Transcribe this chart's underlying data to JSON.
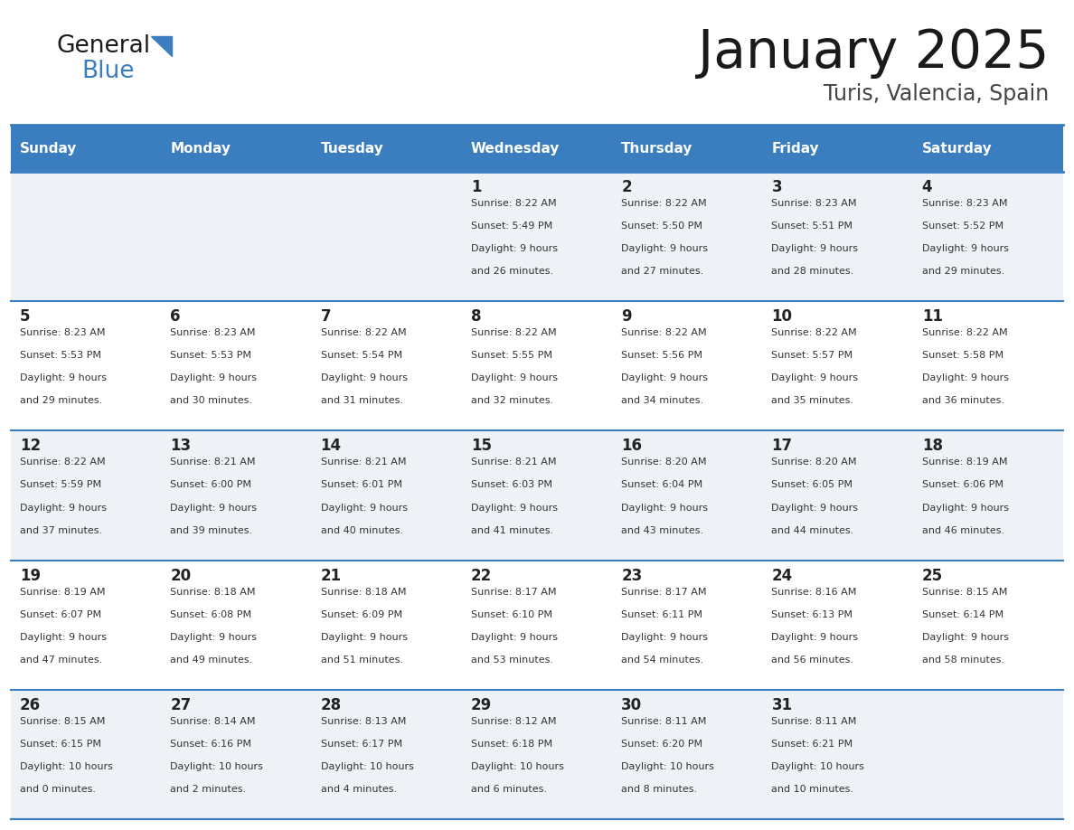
{
  "title": "January 2025",
  "subtitle": "Turis, Valencia, Spain",
  "header_color": "#3a7ebf",
  "header_text_color": "#ffffff",
  "cell_bg_even": "#eef2f7",
  "cell_bg_odd": "#ffffff",
  "border_color": "#3a7ebf",
  "text_color": "#333333",
  "day_num_color": "#222222",
  "days_of_week": [
    "Sunday",
    "Monday",
    "Tuesday",
    "Wednesday",
    "Thursday",
    "Friday",
    "Saturday"
  ],
  "weeks": [
    [
      {
        "day": "",
        "sunrise": "",
        "sunset": "",
        "daylight_h": "",
        "daylight_m": ""
      },
      {
        "day": "",
        "sunrise": "",
        "sunset": "",
        "daylight_h": "",
        "daylight_m": ""
      },
      {
        "day": "",
        "sunrise": "",
        "sunset": "",
        "daylight_h": "",
        "daylight_m": ""
      },
      {
        "day": "1",
        "sunrise": "8:22 AM",
        "sunset": "5:49 PM",
        "daylight_h": "9",
        "daylight_m": "26"
      },
      {
        "day": "2",
        "sunrise": "8:22 AM",
        "sunset": "5:50 PM",
        "daylight_h": "9",
        "daylight_m": "27"
      },
      {
        "day": "3",
        "sunrise": "8:23 AM",
        "sunset": "5:51 PM",
        "daylight_h": "9",
        "daylight_m": "28"
      },
      {
        "day": "4",
        "sunrise": "8:23 AM",
        "sunset": "5:52 PM",
        "daylight_h": "9",
        "daylight_m": "29"
      }
    ],
    [
      {
        "day": "5",
        "sunrise": "8:23 AM",
        "sunset": "5:53 PM",
        "daylight_h": "9",
        "daylight_m": "29"
      },
      {
        "day": "6",
        "sunrise": "8:23 AM",
        "sunset": "5:53 PM",
        "daylight_h": "9",
        "daylight_m": "30"
      },
      {
        "day": "7",
        "sunrise": "8:22 AM",
        "sunset": "5:54 PM",
        "daylight_h": "9",
        "daylight_m": "31"
      },
      {
        "day": "8",
        "sunrise": "8:22 AM",
        "sunset": "5:55 PM",
        "daylight_h": "9",
        "daylight_m": "32"
      },
      {
        "day": "9",
        "sunrise": "8:22 AM",
        "sunset": "5:56 PM",
        "daylight_h": "9",
        "daylight_m": "34"
      },
      {
        "day": "10",
        "sunrise": "8:22 AM",
        "sunset": "5:57 PM",
        "daylight_h": "9",
        "daylight_m": "35"
      },
      {
        "day": "11",
        "sunrise": "8:22 AM",
        "sunset": "5:58 PM",
        "daylight_h": "9",
        "daylight_m": "36"
      }
    ],
    [
      {
        "day": "12",
        "sunrise": "8:22 AM",
        "sunset": "5:59 PM",
        "daylight_h": "9",
        "daylight_m": "37"
      },
      {
        "day": "13",
        "sunrise": "8:21 AM",
        "sunset": "6:00 PM",
        "daylight_h": "9",
        "daylight_m": "39"
      },
      {
        "day": "14",
        "sunrise": "8:21 AM",
        "sunset": "6:01 PM",
        "daylight_h": "9",
        "daylight_m": "40"
      },
      {
        "day": "15",
        "sunrise": "8:21 AM",
        "sunset": "6:03 PM",
        "daylight_h": "9",
        "daylight_m": "41"
      },
      {
        "day": "16",
        "sunrise": "8:20 AM",
        "sunset": "6:04 PM",
        "daylight_h": "9",
        "daylight_m": "43"
      },
      {
        "day": "17",
        "sunrise": "8:20 AM",
        "sunset": "6:05 PM",
        "daylight_h": "9",
        "daylight_m": "44"
      },
      {
        "day": "18",
        "sunrise": "8:19 AM",
        "sunset": "6:06 PM",
        "daylight_h": "9",
        "daylight_m": "46"
      }
    ],
    [
      {
        "day": "19",
        "sunrise": "8:19 AM",
        "sunset": "6:07 PM",
        "daylight_h": "9",
        "daylight_m": "47"
      },
      {
        "day": "20",
        "sunrise": "8:18 AM",
        "sunset": "6:08 PM",
        "daylight_h": "9",
        "daylight_m": "49"
      },
      {
        "day": "21",
        "sunrise": "8:18 AM",
        "sunset": "6:09 PM",
        "daylight_h": "9",
        "daylight_m": "51"
      },
      {
        "day": "22",
        "sunrise": "8:17 AM",
        "sunset": "6:10 PM",
        "daylight_h": "9",
        "daylight_m": "53"
      },
      {
        "day": "23",
        "sunrise": "8:17 AM",
        "sunset": "6:11 PM",
        "daylight_h": "9",
        "daylight_m": "54"
      },
      {
        "day": "24",
        "sunrise": "8:16 AM",
        "sunset": "6:13 PM",
        "daylight_h": "9",
        "daylight_m": "56"
      },
      {
        "day": "25",
        "sunrise": "8:15 AM",
        "sunset": "6:14 PM",
        "daylight_h": "9",
        "daylight_m": "58"
      }
    ],
    [
      {
        "day": "26",
        "sunrise": "8:15 AM",
        "sunset": "6:15 PM",
        "daylight_h": "10",
        "daylight_m": "0"
      },
      {
        "day": "27",
        "sunrise": "8:14 AM",
        "sunset": "6:16 PM",
        "daylight_h": "10",
        "daylight_m": "2"
      },
      {
        "day": "28",
        "sunrise": "8:13 AM",
        "sunset": "6:17 PM",
        "daylight_h": "10",
        "daylight_m": "4"
      },
      {
        "day": "29",
        "sunrise": "8:12 AM",
        "sunset": "6:18 PM",
        "daylight_h": "10",
        "daylight_m": "6"
      },
      {
        "day": "30",
        "sunrise": "8:11 AM",
        "sunset": "6:20 PM",
        "daylight_h": "10",
        "daylight_m": "8"
      },
      {
        "day": "31",
        "sunrise": "8:11 AM",
        "sunset": "6:21 PM",
        "daylight_h": "10",
        "daylight_m": "10"
      },
      {
        "day": "",
        "sunrise": "",
        "sunset": "",
        "daylight_h": "",
        "daylight_m": ""
      }
    ]
  ],
  "logo_color_general": "#1a1a1a",
  "logo_color_blue": "#3a7ebf",
  "logo_triangle_color": "#3a7ebf"
}
